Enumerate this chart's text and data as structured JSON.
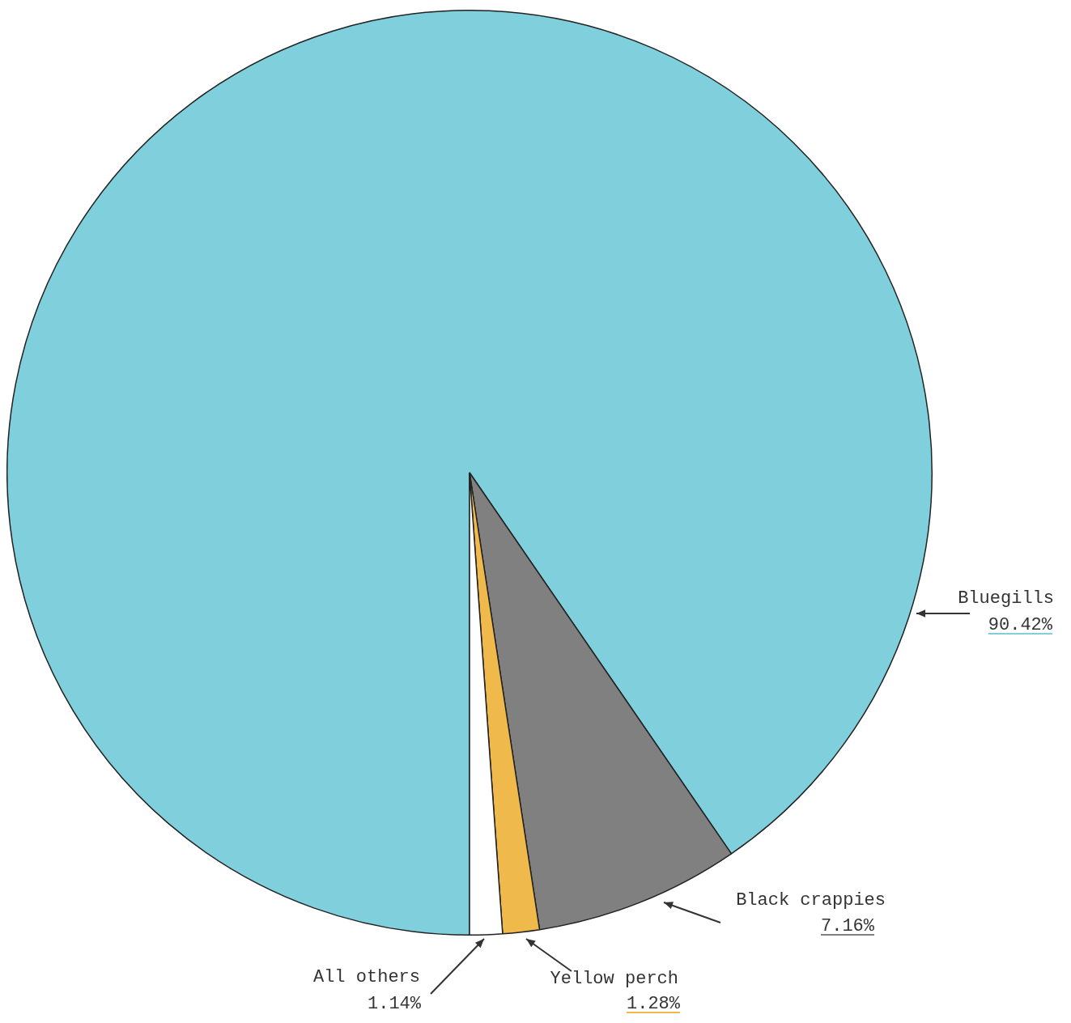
{
  "chart_data": {
    "type": "pie",
    "categories": [
      "Bluegills",
      "Black crappies",
      "Yellow perch",
      "All others"
    ],
    "values": [
      90.42,
      7.16,
      1.28,
      1.14
    ],
    "value_labels": [
      "90.42%",
      "7.16%",
      "1.28%",
      "1.14%"
    ],
    "colors": [
      "#7fd0dc",
      "#808080",
      "#efb94c",
      "#ffffff"
    ]
  }
}
